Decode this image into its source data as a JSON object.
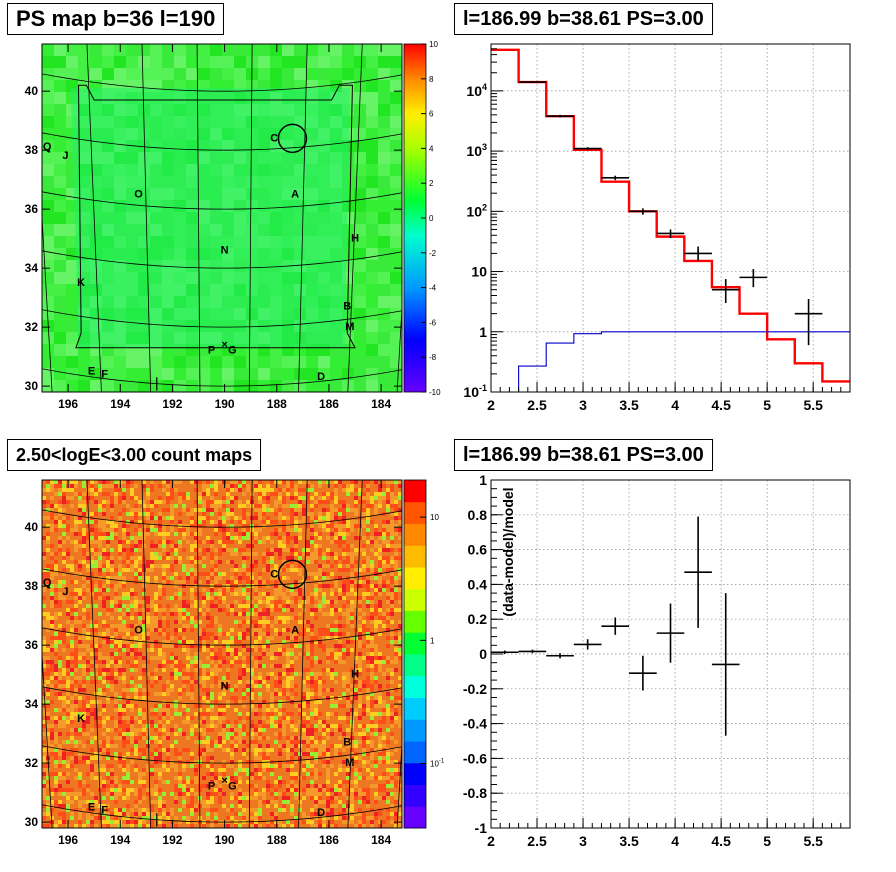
{
  "panels": {
    "tl_title": "PS map b=36 l=190",
    "tr_title": "l=186.99 b=38.61 PS=3.00",
    "bl_title": "2.50<logE<3.00 count maps",
    "br_title": "l=186.99 b=38.61 PS=3.00"
  },
  "colors": {
    "model": "#ff0000",
    "data": "#000000",
    "background_model": "#0000cc",
    "map_fill_top": "#33ee33",
    "map_fill_bottom": "#ee7722"
  },
  "source_labels": [
    {
      "label": "C",
      "l": 188.1,
      "b": 38.3
    },
    {
      "label": "Q",
      "l": 196.8,
      "b": 38.0
    },
    {
      "label": "J",
      "l": 196.1,
      "b": 37.7
    },
    {
      "label": "O",
      "l": 193.3,
      "b": 36.4
    },
    {
      "label": "A",
      "l": 187.3,
      "b": 36.4
    },
    {
      "label": "H",
      "l": 185.0,
      "b": 34.9
    },
    {
      "label": "N",
      "l": 190.0,
      "b": 34.5
    },
    {
      "label": "K",
      "l": 195.5,
      "b": 33.4
    },
    {
      "label": "B",
      "l": 185.3,
      "b": 32.6
    },
    {
      "label": "M",
      "l": 185.2,
      "b": 31.9
    },
    {
      "label": "P",
      "l": 190.5,
      "b": 31.1
    },
    {
      "label": "G",
      "l": 189.7,
      "b": 31.1
    },
    {
      "label": "E",
      "l": 195.1,
      "b": 30.4
    },
    {
      "label": "F",
      "l": 194.6,
      "b": 30.3
    },
    {
      "label": "D",
      "l": 186.3,
      "b": 30.2
    }
  ],
  "chart_data": [
    {
      "type": "heatmap",
      "title": "PS map b=36 l=190",
      "x_axis": {
        "ticks": [
          "196",
          "194",
          "192",
          "190",
          "188",
          "186",
          "184"
        ],
        "range": [
          197.0,
          183.2
        ]
      },
      "y_axis": {
        "ticks": [
          "30",
          "32",
          "34",
          "36",
          "38",
          "40"
        ],
        "range": [
          29.8,
          41.6
        ]
      },
      "colorbar": {
        "ticks": [
          "-10",
          "-8",
          "-6",
          "-4",
          "-2",
          "0",
          "2",
          "4",
          "6",
          "8",
          "10"
        ],
        "range": [
          -10,
          10
        ]
      }
    },
    {
      "type": "line",
      "title": "l=186.99 b=38.61 PS=3.00",
      "xlim": [
        2,
        5.9
      ],
      "ylim": [
        0.1,
        60000
      ],
      "log_y": true,
      "x_ticks": [
        "2",
        "2.5",
        "3",
        "3.5",
        "4",
        "4.5",
        "5",
        "5.5"
      ],
      "y_ticks": [
        "10^{-1}",
        "1",
        "10",
        "10^{2}",
        "10^{3}",
        "10^{4}"
      ],
      "grid": true,
      "series": [
        {
          "kind": "step",
          "role": "model",
          "edges": [
            2.0,
            2.3,
            2.6,
            2.9,
            3.2,
            3.5,
            3.8,
            4.1,
            4.4,
            4.7,
            5.0,
            5.3,
            5.6,
            5.9
          ],
          "values": [
            48000,
            14000,
            3800,
            1050,
            310,
            100,
            38,
            15,
            5.5,
            2.0,
            0.75,
            0.3,
            0.15
          ]
        },
        {
          "kind": "step",
          "role": "background",
          "edges": [
            2.0,
            2.3,
            2.6,
            2.9,
            3.2,
            3.5,
            5.9
          ],
          "values": [
            0.03,
            0.27,
            0.65,
            0.93,
            1.0,
            1.0
          ]
        },
        {
          "kind": "errorbar",
          "role": "data",
          "points": [
            {
              "x": 2.45,
              "y": 14000,
              "xerr": 0.15,
              "ylo": 13500,
              "yhi": 14500
            },
            {
              "x": 2.75,
              "y": 3800,
              "xerr": 0.15,
              "ylo": 3600,
              "yhi": 4000
            },
            {
              "x": 3.05,
              "y": 1100,
              "xerr": 0.15,
              "ylo": 1040,
              "yhi": 1160
            },
            {
              "x": 3.35,
              "y": 360,
              "xerr": 0.15,
              "ylo": 330,
              "yhi": 390
            },
            {
              "x": 3.65,
              "y": 100,
              "xerr": 0.15,
              "ylo": 88,
              "yhi": 112
            },
            {
              "x": 3.95,
              "y": 43,
              "xerr": 0.15,
              "ylo": 36,
              "yhi": 50
            },
            {
              "x": 4.25,
              "y": 20,
              "xerr": 0.15,
              "ylo": 15,
              "yhi": 26
            },
            {
              "x": 4.55,
              "y": 5,
              "xerr": 0.15,
              "ylo": 3,
              "yhi": 7.5
            },
            {
              "x": 4.85,
              "y": 8,
              "xerr": 0.15,
              "ylo": 5.5,
              "yhi": 11
            },
            {
              "x": 5.45,
              "y": 2,
              "xerr": 0.15,
              "ylo": 0.6,
              "yhi": 3.5
            }
          ]
        }
      ]
    },
    {
      "type": "heatmap",
      "title": "2.50<logE<3.00 count maps",
      "x_axis": {
        "ticks": [
          "196",
          "194",
          "192",
          "190",
          "188",
          "186",
          "184"
        ],
        "range": [
          197.0,
          183.2
        ]
      },
      "y_axis": {
        "ticks": [
          "30",
          "32",
          "34",
          "36",
          "38",
          "40"
        ],
        "range": [
          29.8,
          41.6
        ]
      },
      "colorbar": {
        "ticks": [
          "10^{-1}",
          "1",
          "10"
        ],
        "log": true,
        "range": [
          0.03,
          20
        ]
      }
    },
    {
      "type": "scatter",
      "title": "l=186.99 b=38.61 PS=3.00",
      "ylabel": "(data-model)/model",
      "xlim": [
        2,
        5.9
      ],
      "ylim": [
        -1,
        1
      ],
      "x_ticks": [
        "2",
        "2.5",
        "3",
        "3.5",
        "4",
        "4.5",
        "5",
        "5.5"
      ],
      "y_ticks": [
        "-1",
        "-0.8",
        "-0.6",
        "-0.4",
        "-0.2",
        "0",
        "0.2",
        "0.4",
        "0.6",
        "0.8",
        "1"
      ],
      "grid": true,
      "points": [
        {
          "x": 2.15,
          "y": 0.01,
          "xerr": 0.15,
          "yerr": 0.01
        },
        {
          "x": 2.45,
          "y": 0.015,
          "xerr": 0.15,
          "yerr": 0.01
        },
        {
          "x": 2.75,
          "y": -0.01,
          "xerr": 0.15,
          "yerr": 0.015
        },
        {
          "x": 3.05,
          "y": 0.055,
          "xerr": 0.15,
          "yerr": 0.03
        },
        {
          "x": 3.35,
          "y": 0.16,
          "xerr": 0.15,
          "yerr": 0.05
        },
        {
          "x": 3.65,
          "y": -0.11,
          "xerr": 0.15,
          "yerr": 0.1
        },
        {
          "x": 3.95,
          "y": 0.12,
          "xerr": 0.15,
          "yerr": 0.17
        },
        {
          "x": 4.25,
          "y": 0.47,
          "xerr": 0.15,
          "yerr": 0.32
        },
        {
          "x": 4.55,
          "y": -0.06,
          "xerr": 0.15,
          "yerr": 0.41
        }
      ]
    }
  ]
}
